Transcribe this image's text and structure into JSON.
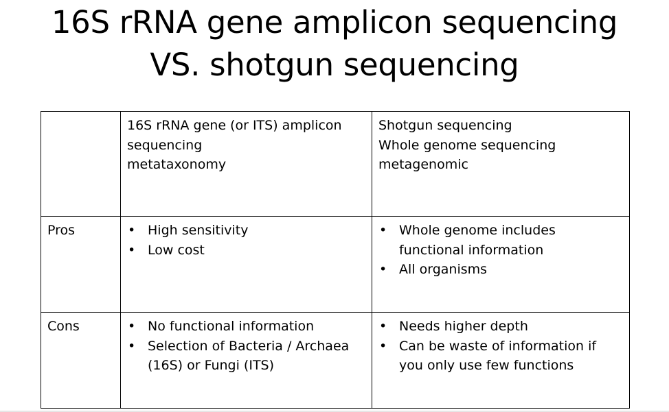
{
  "title": {
    "line1": "16S rRNA gene amplicon sequencing",
    "line2": "VS. shotgun sequencing"
  },
  "table": {
    "header": {
      "corner": "",
      "col1": [
        "16S rRNA gene (or ITS) amplicon",
        "sequencing",
        "metataxonomy"
      ],
      "col2": [
        "Shotgun sequencing",
        "Whole genome sequencing",
        "metagenomic"
      ]
    },
    "rows": [
      {
        "label": "Pros",
        "col1": [
          "High sensitivity",
          "Low cost"
        ],
        "col2": [
          "Whole genome includes functional information",
          "All organisms"
        ]
      },
      {
        "label": "Cons",
        "col1": [
          "No functional information",
          "Selection of Bacteria / Archaea (16S) or Fungi (ITS)"
        ],
        "col2": [
          "Needs higher depth",
          "Can be waste of information if you only use few functions"
        ]
      }
    ]
  }
}
